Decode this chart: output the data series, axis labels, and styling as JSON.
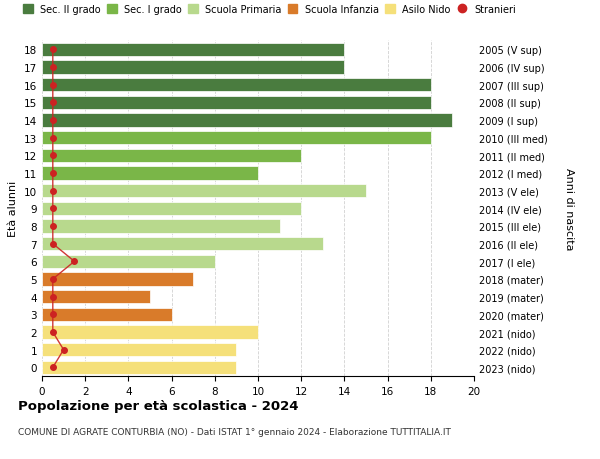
{
  "ages": [
    18,
    17,
    16,
    15,
    14,
    13,
    12,
    11,
    10,
    9,
    8,
    7,
    6,
    5,
    4,
    3,
    2,
    1,
    0
  ],
  "years": [
    "2005 (V sup)",
    "2006 (IV sup)",
    "2007 (III sup)",
    "2008 (II sup)",
    "2009 (I sup)",
    "2010 (III med)",
    "2011 (II med)",
    "2012 (I med)",
    "2013 (V ele)",
    "2014 (IV ele)",
    "2015 (III ele)",
    "2016 (II ele)",
    "2017 (I ele)",
    "2018 (mater)",
    "2019 (mater)",
    "2020 (mater)",
    "2021 (nido)",
    "2022 (nido)",
    "2023 (nido)"
  ],
  "bar_values": [
    14,
    14,
    18,
    18,
    19,
    18,
    12,
    10,
    15,
    12,
    11,
    13,
    8,
    7,
    5,
    6,
    10,
    9,
    9
  ],
  "bar_colors": [
    "#4a7c3f",
    "#4a7c3f",
    "#4a7c3f",
    "#4a7c3f",
    "#4a7c3f",
    "#7ab648",
    "#7ab648",
    "#7ab648",
    "#b8d98d",
    "#b8d98d",
    "#b8d98d",
    "#b8d98d",
    "#b8d98d",
    "#d97b2a",
    "#d97b2a",
    "#d97b2a",
    "#f5e07a",
    "#f5e07a",
    "#f5e07a"
  ],
  "stranieri_x": [
    0.5,
    0.5,
    0.5,
    0.5,
    0.5,
    0.5,
    0.5,
    0.5,
    0.5,
    0.5,
    0.5,
    0.5,
    1.5,
    0.5,
    0.5,
    0.5,
    0.5,
    1.0,
    0.5
  ],
  "legend_labels": [
    "Sec. II grado",
    "Sec. I grado",
    "Scuola Primaria",
    "Scuola Infanzia",
    "Asilo Nido",
    "Stranieri"
  ],
  "legend_colors": [
    "#4a7c3f",
    "#7ab648",
    "#b8d98d",
    "#d97b2a",
    "#f5e07a",
    "#cc2222"
  ],
  "title": "Popolazione per età scolastica - 2024",
  "subtitle": "COMUNE DI AGRATE CONTURBIA (NO) - Dati ISTAT 1° gennaio 2024 - Elaborazione TUTTITALIA.IT",
  "ylabel_left": "Età alunni",
  "ylabel_right": "Anni di nascita",
  "xlim": [
    0,
    20
  ],
  "xticks": [
    0,
    2,
    4,
    6,
    8,
    10,
    12,
    14,
    16,
    18,
    20
  ],
  "stranieri_color": "#cc2222",
  "bg_color": "#ffffff",
  "grid_color": "#cccccc"
}
